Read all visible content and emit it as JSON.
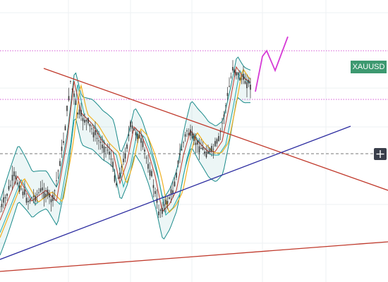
{
  "symbol_label": "XAUUSD"
}
